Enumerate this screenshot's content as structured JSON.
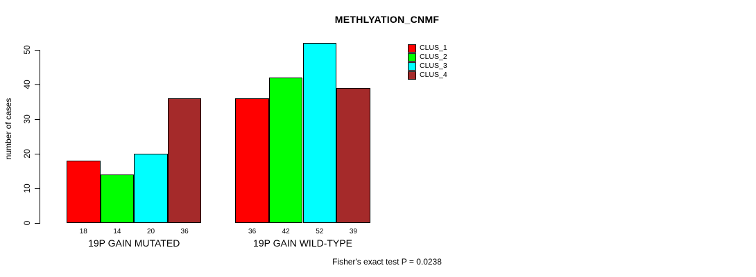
{
  "chart_data": {
    "type": "bar",
    "title": "METHLYATION_CNMF",
    "ylabel": "number of cases",
    "xlabel": "",
    "categories": [
      "19P GAIN MUTATED",
      "19P GAIN WILD-TYPE"
    ],
    "series": [
      {
        "name": "CLUS_1",
        "color": "#ff0000",
        "values": [
          18,
          36
        ]
      },
      {
        "name": "CLUS_2",
        "color": "#00ff00",
        "values": [
          14,
          42
        ]
      },
      {
        "name": "CLUS_3",
        "color": "#00ffff",
        "values": [
          20,
          52
        ]
      },
      {
        "name": "CLUS_4",
        "color": "#a52a2a",
        "values": [
          36,
          39
        ]
      }
    ],
    "yticks": [
      0,
      10,
      20,
      30,
      40,
      50
    ],
    "ylim": [
      0,
      52
    ],
    "bar_value_labels": [
      [
        18,
        14,
        20,
        36
      ],
      [
        36,
        42,
        52,
        39
      ]
    ],
    "legend": {
      "position": "top-right",
      "entries": [
        "CLUS_1",
        "CLUS_2",
        "CLUS_3",
        "CLUS_4"
      ]
    },
    "annotation": "Fisher's exact test P = 0.0238",
    "grid": false,
    "bar_border_color": "#000000",
    "background_color": "#ffffff"
  }
}
